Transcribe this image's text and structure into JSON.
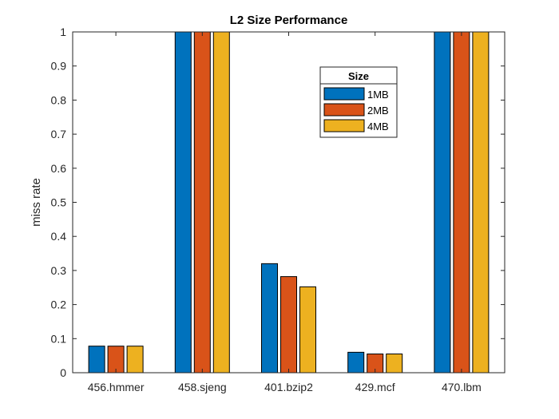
{
  "chart_data": {
    "type": "bar",
    "title": "L2 Size Performance",
    "xlabel": "",
    "ylabel": "miss rate",
    "categories": [
      "456.hmmer",
      "458.sjeng",
      "401.bzip2",
      "429.mcf",
      "470.lbm"
    ],
    "series": [
      {
        "name": "1MB",
        "color": "#0072BD",
        "values": [
          0.078,
          1.0,
          0.32,
          0.06,
          1.0
        ]
      },
      {
        "name": "2MB",
        "color": "#D95319",
        "values": [
          0.078,
          1.0,
          0.282,
          0.055,
          1.0
        ]
      },
      {
        "name": "4MB",
        "color": "#EDB120",
        "values": [
          0.078,
          1.0,
          0.252,
          0.055,
          1.0
        ]
      }
    ],
    "ylim": [
      0,
      1
    ],
    "yticks": [
      "0",
      "0.1",
      "0.2",
      "0.3",
      "0.4",
      "0.5",
      "0.6",
      "0.7",
      "0.8",
      "0.9",
      "1"
    ],
    "legend": {
      "title": "Size",
      "position": "top-right-inside"
    },
    "grid": false
  }
}
